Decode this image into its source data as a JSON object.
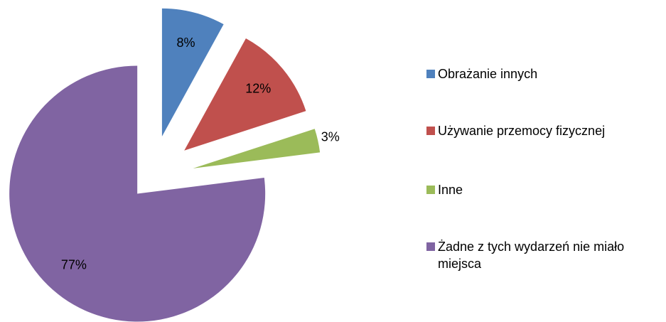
{
  "chart_data": {
    "type": "pie",
    "categories": [
      "Obrażanie innych",
      "Używanie przemocy fizycznej",
      "Inne",
      "Żadne z tych wydarzeń nie miało miejsca"
    ],
    "values": [
      8,
      12,
      3,
      77
    ],
    "value_labels": [
      "8%",
      "12%",
      "3%",
      "77%"
    ],
    "colors": [
      "#4f81bd",
      "#c0504d",
      "#9bbb59",
      "#8064a2"
    ],
    "legend": "right"
  }
}
